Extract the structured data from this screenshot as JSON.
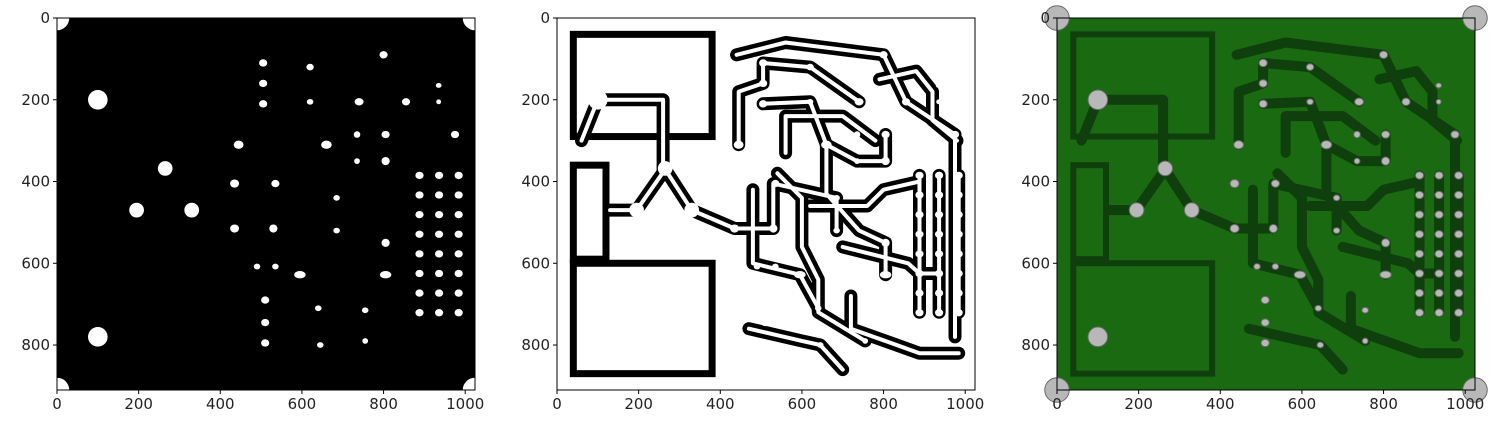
{
  "figure": {
    "panels": [
      {
        "name": "binary-pad-mask",
        "kind": "pads"
      },
      {
        "name": "binary-trace-mask",
        "kind": "traces"
      },
      {
        "name": "pcb-photo",
        "kind": "photo"
      }
    ],
    "x_ticks": [
      "0",
      "200",
      "400",
      "600",
      "800",
      "1000"
    ],
    "y_ticks": [
      "0",
      "200",
      "400",
      "600",
      "800"
    ],
    "colors": {
      "background_black": "#000000",
      "mask_white": "#ffffff",
      "board_green": "#1a6a12",
      "trace_dark_green": "#0f3f0c",
      "pad_silver": "#b8b8b8"
    }
  }
}
